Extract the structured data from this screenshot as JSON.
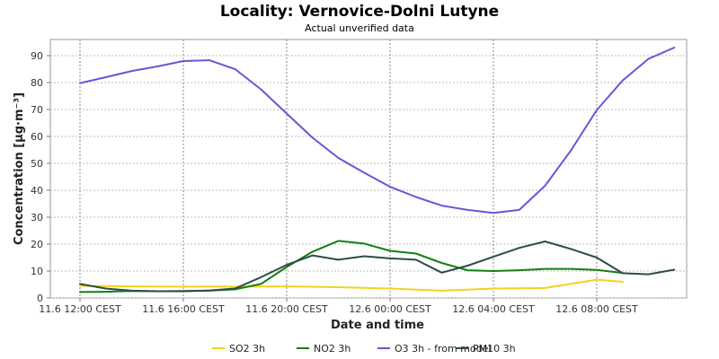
{
  "chart_data": {
    "type": "line",
    "title": "Locality: Vernovice-Dolni Lutyne",
    "subtitle": "Actual unverified data",
    "xlabel": "Date and time",
    "ylabel": "Concentration [µg·m⁻³]",
    "ylim": [
      0,
      96
    ],
    "yticks": [
      0,
      10,
      20,
      30,
      40,
      50,
      60,
      70,
      80,
      90
    ],
    "x_tick_labels": [
      "11.6 12:00 CEST",
      "11.6 16:00 CEST",
      "11.6 20:00 CEST",
      "12.6 00:00 CEST",
      "12.6 04:00 CEST",
      "12.6 08:00 CEST"
    ],
    "grid": true,
    "legend_position": "bottom",
    "colors": {
      "SO2 3h": "#f2d31c",
      "NO2 3h": "#128012",
      "O3 3h - from model": "#6b54d6",
      "PM10 3h": "#2d4d42"
    },
    "series": [
      {
        "name": "SO2 3h",
        "x": [
          0,
          2,
          4,
          6,
          8,
          10,
          12,
          14,
          16,
          18,
          20,
          21
        ],
        "values": [
          4.5,
          4.3,
          4.2,
          4.2,
          4.3,
          4,
          3.5,
          2.7,
          3.5,
          3.7,
          6.8,
          6
        ]
      },
      {
        "name": "NO2 3h",
        "x": [
          0,
          1,
          2,
          3,
          4,
          5,
          6,
          7,
          8,
          9,
          10,
          11,
          12,
          13,
          14,
          15,
          16,
          17,
          18,
          19,
          20,
          21
        ],
        "values": [
          2.2,
          2.3,
          2.6,
          2.5,
          2.6,
          2.7,
          3.2,
          5.2,
          11.5,
          17.2,
          21.2,
          20.2,
          17.5,
          16.5,
          13,
          10.3,
          10,
          10.3,
          10.8,
          10.8,
          10.4,
          9.3
        ]
      },
      {
        "name": "O3 3h - from model",
        "x": [
          0,
          1,
          2,
          3,
          4,
          5,
          6,
          7,
          8,
          9,
          10,
          11,
          12,
          13,
          14,
          15,
          16,
          17,
          18,
          19,
          20,
          21,
          22,
          23
        ],
        "values": [
          79.8,
          82,
          84.3,
          86,
          88,
          88.3,
          85,
          77.5,
          68.5,
          59.5,
          52,
          46.5,
          41.3,
          37.5,
          34.3,
          32.7,
          31.6,
          32.7,
          41.7,
          54.8,
          69.8,
          80.8,
          88.8,
          93
        ]
      },
      {
        "name": "PM10 3h",
        "x": [
          0,
          1,
          2,
          3,
          4,
          5,
          6,
          7,
          8,
          9,
          10,
          11,
          12,
          13,
          14,
          15,
          16,
          17,
          18,
          19,
          20,
          21,
          22,
          23
        ],
        "values": [
          5.2,
          3.5,
          2.7,
          2.5,
          2.5,
          2.8,
          3.5,
          7.7,
          12.3,
          15.8,
          14.2,
          15.5,
          14.7,
          14.2,
          9.4,
          12,
          15.3,
          18.6,
          21,
          18.2,
          15,
          9.2,
          8.8,
          10.5
        ]
      }
    ]
  }
}
